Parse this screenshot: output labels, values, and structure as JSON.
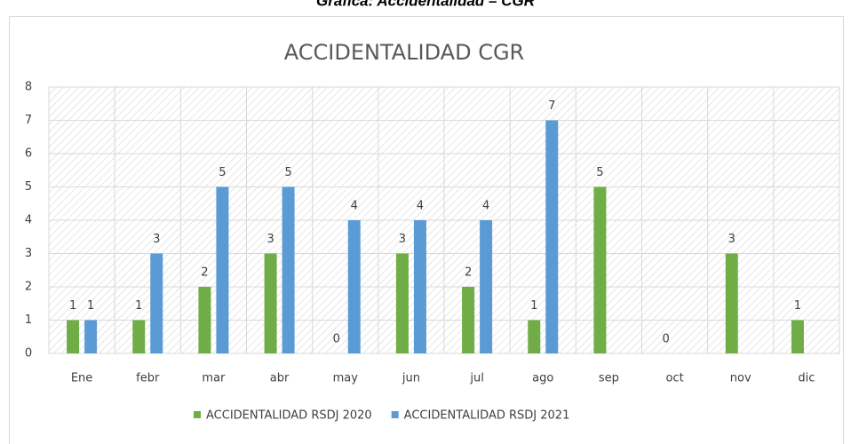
{
  "page_title": "Gráfica: Accidentalidad – CGR",
  "chart_data": {
    "type": "bar",
    "title": "ACCIDENTALIDAD CGR",
    "categories": [
      "Ene",
      "febr",
      "mar",
      "abr",
      "may",
      "jun",
      "jul",
      "ago",
      "sep",
      "oct",
      "nov",
      "dic"
    ],
    "series": [
      {
        "name": "ACCIDENTALIDAD RSDJ 2020",
        "color": "#70ad47",
        "values": [
          1,
          1,
          2,
          3,
          0,
          3,
          2,
          1,
          5,
          0,
          3,
          1
        ]
      },
      {
        "name": "ACCIDENTALIDAD RSDJ 2021",
        "color": "#5b9bd5",
        "values": [
          1,
          3,
          5,
          5,
          4,
          4,
          4,
          7,
          null,
          null,
          null,
          null
        ]
      }
    ],
    "ylim": [
      0,
      8
    ],
    "yticks": [
      0,
      1,
      2,
      3,
      4,
      5,
      6,
      7,
      8
    ],
    "grid": true,
    "legend": "bottom"
  }
}
